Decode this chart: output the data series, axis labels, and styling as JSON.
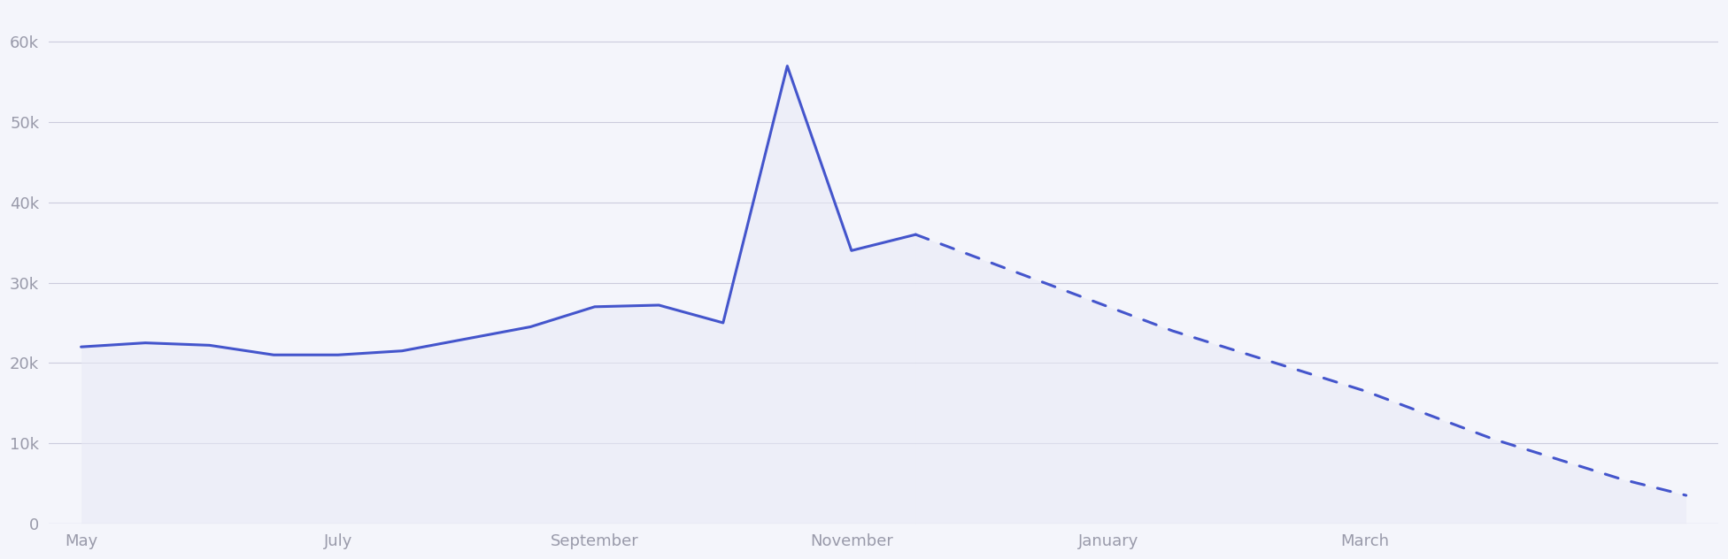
{
  "solid_x": [
    0,
    1,
    2,
    3,
    4,
    5,
    6,
    7,
    8,
    9,
    10,
    11,
    12,
    13
  ],
  "solid_y": [
    22000,
    22500,
    22200,
    21000,
    21000,
    21500,
    23000,
    24500,
    27000,
    27200,
    25000,
    57000,
    34000,
    36000
  ],
  "dashed_x": [
    13,
    14,
    15,
    16,
    17,
    18,
    19,
    20,
    21,
    22,
    23,
    24,
    25
  ],
  "dashed_y": [
    36000,
    33000,
    30000,
    27000,
    24000,
    21500,
    19000,
    16500,
    13500,
    10500,
    8000,
    5500,
    3500
  ],
  "xtick_positions": [
    0,
    4,
    8,
    12,
    16,
    20,
    24
  ],
  "xtick_labels": [
    "May",
    "July",
    "September",
    "November",
    "January",
    "March",
    ""
  ],
  "yticks": [
    0,
    10000,
    20000,
    30000,
    40000,
    50000,
    60000
  ],
  "ytick_labels": [
    "0",
    "10k",
    "20k",
    "30k",
    "40k",
    "50k",
    "60k"
  ],
  "ylim": [
    0,
    64000
  ],
  "xlim": [
    -0.5,
    25.5
  ],
  "line_color": "#4455cc",
  "fill_color": "#e8eaf6",
  "fill_alpha": 0.55,
  "background_color": "#f4f5fb",
  "grid_color": "#ccccdd",
  "tick_color": "#999aaa",
  "line_width": 2.2,
  "dashed_linewidth": 2.2,
  "fontsize": 13
}
